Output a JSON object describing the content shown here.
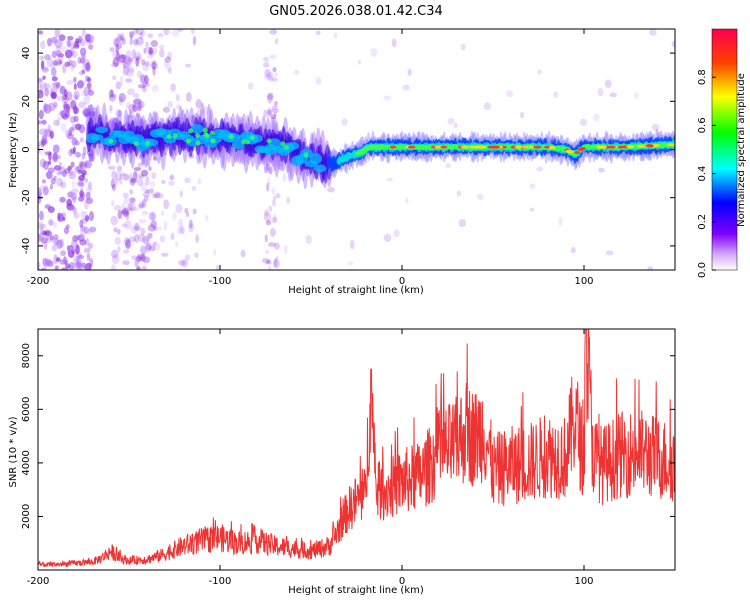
{
  "title": "GN05.2026.038.01.42.C34",
  "chart_data": [
    {
      "type": "heatmap",
      "xlabel": "Height of straight line (km)",
      "ylabel": "Frequency (Hz)",
      "xlim": [
        -200,
        150
      ],
      "ylim": [
        -50,
        50
      ],
      "xticks": [
        -200,
        -100,
        0,
        100
      ],
      "yticks": [
        -40,
        -20,
        0,
        20,
        40
      ],
      "ridge": {
        "description_points_x": [
          -175,
          -160,
          -140,
          -120,
          -100,
          -80,
          -65,
          -55,
          -45,
          -38,
          -30,
          -22,
          -18,
          0,
          20,
          40,
          60,
          80,
          90,
          95,
          100,
          120,
          150
        ],
        "frequency_hz": [
          8,
          5,
          4,
          6,
          5,
          3,
          2,
          -3,
          -5,
          -6,
          -3,
          -1,
          1,
          1,
          1,
          1,
          1,
          1,
          0,
          -2,
          1,
          1,
          2
        ]
      },
      "colorbar": {
        "label": "Normalized spectral amplitude",
        "ticks": [
          0.0,
          0.2,
          0.4,
          0.6,
          0.8
        ],
        "colors": [
          "#ffffff",
          "#c080ff",
          "#4000ff",
          "#0040ff",
          "#00ffff",
          "#00ff40",
          "#ffff00",
          "#ff8000",
          "#ff0040"
        ]
      }
    },
    {
      "type": "line",
      "xlabel": "Height of straight line (km)",
      "ylabel": "SNR (10 * v/v)",
      "xlim": [
        -200,
        150
      ],
      "ylim": [
        0,
        9000
      ],
      "xticks": [
        -200,
        -100,
        0,
        100
      ],
      "yticks": [
        2000,
        4000,
        6000,
        8000
      ],
      "color": "#ee3333",
      "series": [
        {
          "x": [
            -200,
            -190,
            -180,
            -170,
            -165,
            -160,
            -155,
            -150,
            -140,
            -130,
            -120,
            -110,
            -100,
            -90,
            -80,
            -70,
            -60,
            -50,
            -40,
            -35,
            -30,
            -25,
            -20,
            -17,
            -15,
            -10,
            -5,
            0,
            5,
            10,
            20,
            30,
            35,
            40,
            45,
            50,
            60,
            70,
            80,
            90,
            95,
            100,
            101,
            105,
            110,
            120,
            130,
            140,
            150
          ],
          "y": [
            200,
            200,
            250,
            300,
            450,
            700,
            450,
            350,
            400,
            600,
            900,
            1100,
            1200,
            1000,
            1100,
            900,
            800,
            700,
            900,
            1500,
            2200,
            2600,
            2800,
            7500,
            3000,
            2900,
            3100,
            3300,
            3400,
            3500,
            4300,
            4700,
            5200,
            4900,
            5300,
            3700,
            3900,
            4000,
            4300,
            4200,
            5800,
            4000,
            8900,
            4300,
            3900,
            4300,
            4400,
            4200,
            4000
          ]
        }
      ]
    }
  ]
}
